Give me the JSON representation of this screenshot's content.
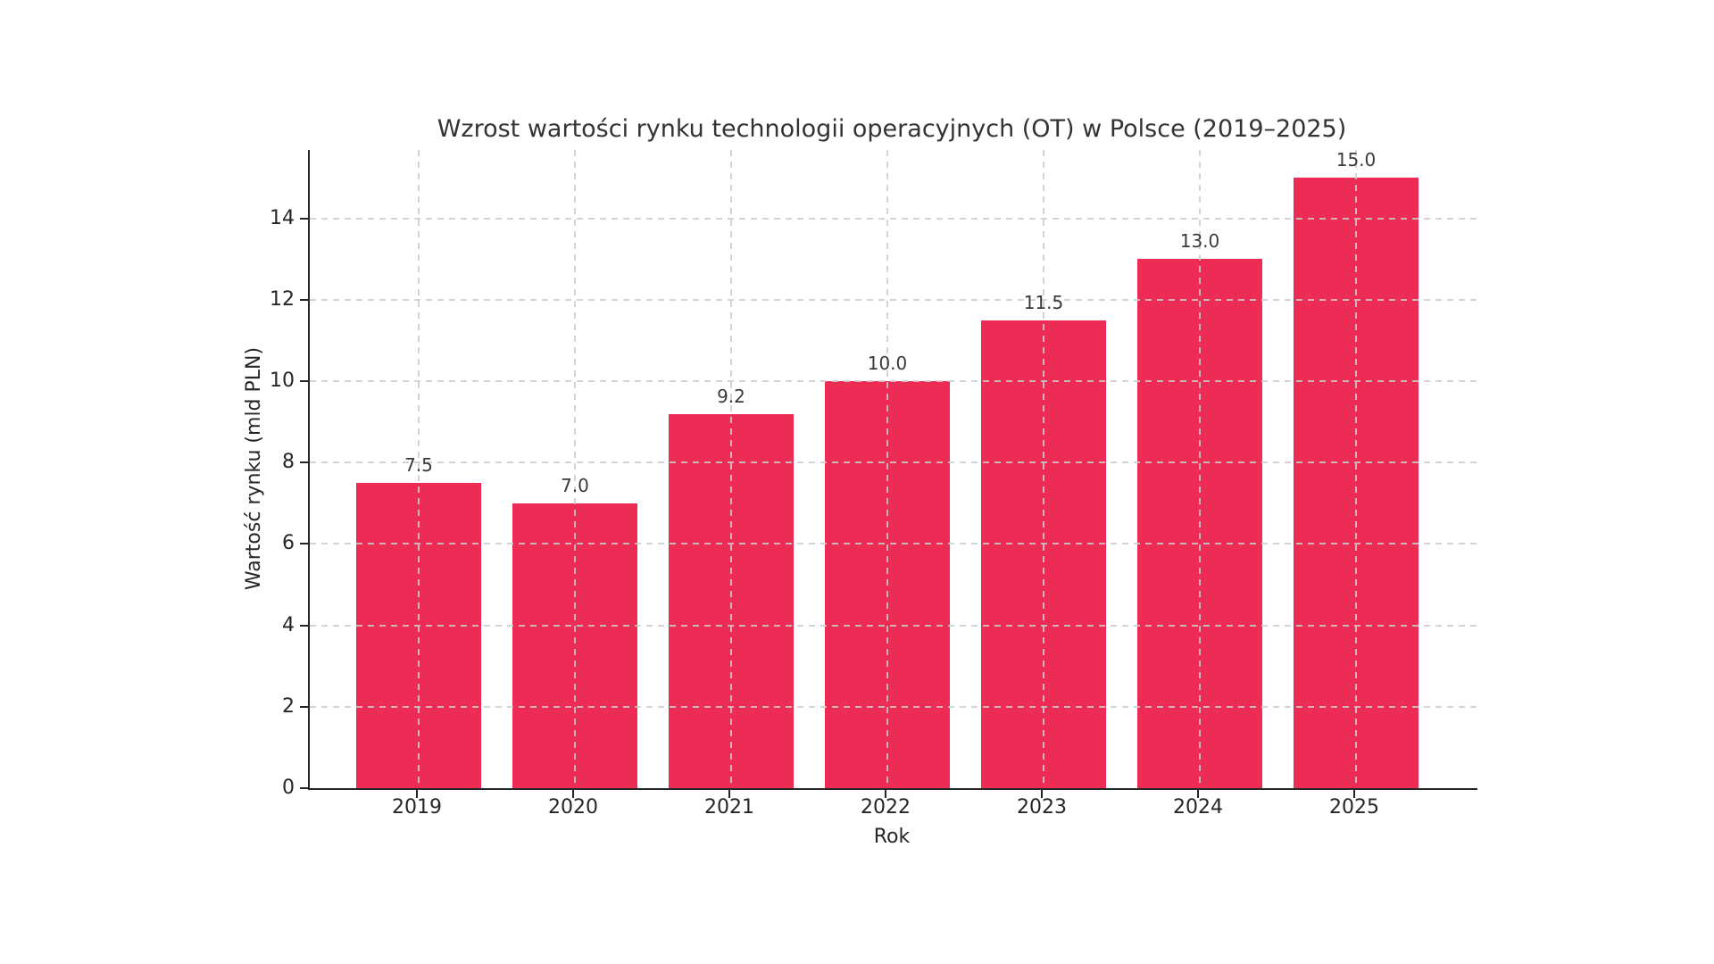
{
  "chart_data": {
    "type": "bar",
    "title": "Wzrost wartości rynku technologii operacyjnych (OT) w Polsce (2019–2025)",
    "xlabel": "Rok",
    "ylabel": "Wartość rynku (mld PLN)",
    "categories": [
      "2019",
      "2020",
      "2021",
      "2022",
      "2023",
      "2024",
      "2025"
    ],
    "values": [
      7.5,
      7.0,
      9.2,
      10.0,
      11.5,
      13.0,
      15.0
    ],
    "value_labels": [
      "7.5",
      "7.0",
      "9.2",
      "10.0",
      "11.5",
      "13.0",
      "15.0"
    ],
    "yticks": [
      0,
      2,
      4,
      6,
      8,
      10,
      12,
      14
    ],
    "ylim": [
      0,
      15.68
    ],
    "bar_color": "#ec2c55",
    "grid": "dashed-both-axes",
    "legend": "none",
    "background_color": "#ffffff"
  }
}
